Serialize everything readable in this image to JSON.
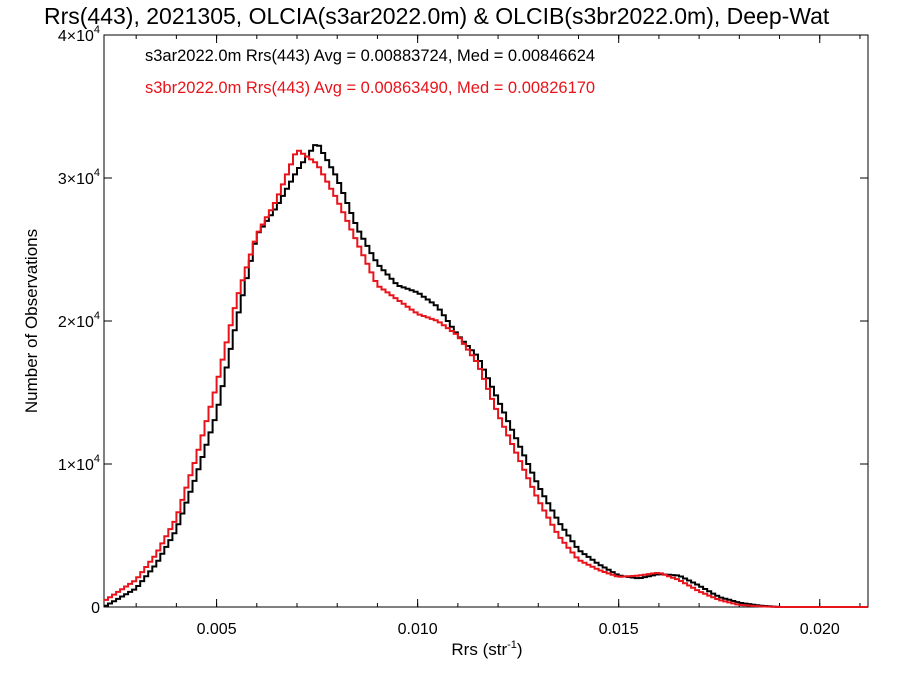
{
  "chart_data": {
    "type": "line",
    "title": "Rrs(443), 2021305, OLCIA(s3ar2022.0m) & OLCIB(s3br2022.0m), Deep-Wat",
    "xlabel": "Rrs (str",
    "xlabel_sup": "-1",
    "xlabel_close": ")",
    "ylabel": "Number of Observations",
    "xlim": [
      0.0022,
      0.0212
    ],
    "ylim": [
      0,
      40000
    ],
    "x_ticks": [
      {
        "value": 0.005,
        "label": "0.005"
      },
      {
        "value": 0.01,
        "label": "0.010"
      },
      {
        "value": 0.015,
        "label": "0.015"
      },
      {
        "value": 0.02,
        "label": "0.020"
      }
    ],
    "y_ticks": [
      {
        "value": 0,
        "base": "0",
        "sup": ""
      },
      {
        "value": 10000,
        "base": "1×10",
        "sup": "4"
      },
      {
        "value": 20000,
        "base": "2×10",
        "sup": "4"
      },
      {
        "value": 30000,
        "base": "3×10",
        "sup": "4"
      },
      {
        "value": 40000,
        "base": "4×10",
        "sup": "4"
      }
    ],
    "series": [
      {
        "label": "s3ar2022.0m Rrs(443) Avg = 0.00883724, Med = 0.00846624",
        "color": "#000000",
        "points": [
          [
            0.0022,
            0
          ],
          [
            0.003,
            1300
          ],
          [
            0.0035,
            3000
          ],
          [
            0.004,
            5400
          ],
          [
            0.0045,
            9200
          ],
          [
            0.005,
            13500
          ],
          [
            0.0055,
            20000
          ],
          [
            0.006,
            26000
          ],
          [
            0.0065,
            28000
          ],
          [
            0.007,
            30500
          ],
          [
            0.0075,
            32500
          ],
          [
            0.008,
            30000
          ],
          [
            0.0085,
            26500
          ],
          [
            0.009,
            24000
          ],
          [
            0.0095,
            22500
          ],
          [
            0.01,
            22000
          ],
          [
            0.0105,
            21000
          ],
          [
            0.011,
            19000
          ],
          [
            0.0115,
            17500
          ],
          [
            0.012,
            14500
          ],
          [
            0.0125,
            11500
          ],
          [
            0.013,
            8500
          ],
          [
            0.0135,
            6000
          ],
          [
            0.014,
            4000
          ],
          [
            0.0145,
            3000
          ],
          [
            0.015,
            2200
          ],
          [
            0.0155,
            2000
          ],
          [
            0.016,
            2300
          ],
          [
            0.0165,
            2200
          ],
          [
            0.017,
            1500
          ],
          [
            0.0175,
            700
          ],
          [
            0.018,
            300
          ],
          [
            0.0185,
            100
          ],
          [
            0.019,
            0
          ],
          [
            0.0212,
            0
          ]
        ]
      },
      {
        "label": "s3br2022.0m Rrs(443) Avg = 0.00863490, Med = 0.00826170",
        "color": "#e8141b",
        "points": [
          [
            0.0022,
            400
          ],
          [
            0.003,
            1900
          ],
          [
            0.0035,
            3700
          ],
          [
            0.004,
            6200
          ],
          [
            0.0045,
            10500
          ],
          [
            0.005,
            15500
          ],
          [
            0.0055,
            21500
          ],
          [
            0.006,
            26000
          ],
          [
            0.0065,
            28500
          ],
          [
            0.007,
            32000
          ],
          [
            0.0075,
            31000
          ],
          [
            0.008,
            28500
          ],
          [
            0.0085,
            25500
          ],
          [
            0.009,
            22500
          ],
          [
            0.0095,
            21500
          ],
          [
            0.01,
            20500
          ],
          [
            0.0105,
            20000
          ],
          [
            0.011,
            19000
          ],
          [
            0.0115,
            17000
          ],
          [
            0.012,
            13500
          ],
          [
            0.0125,
            10500
          ],
          [
            0.013,
            7500
          ],
          [
            0.0135,
            5000
          ],
          [
            0.014,
            3300
          ],
          [
            0.0145,
            2600
          ],
          [
            0.015,
            2100
          ],
          [
            0.0155,
            2200
          ],
          [
            0.016,
            2400
          ],
          [
            0.0165,
            1900
          ],
          [
            0.017,
            1100
          ],
          [
            0.0175,
            500
          ],
          [
            0.018,
            150
          ],
          [
            0.0185,
            50
          ],
          [
            0.019,
            0
          ],
          [
            0.0212,
            0
          ]
        ]
      }
    ],
    "grid": false,
    "legend_placement": "top-left"
  }
}
